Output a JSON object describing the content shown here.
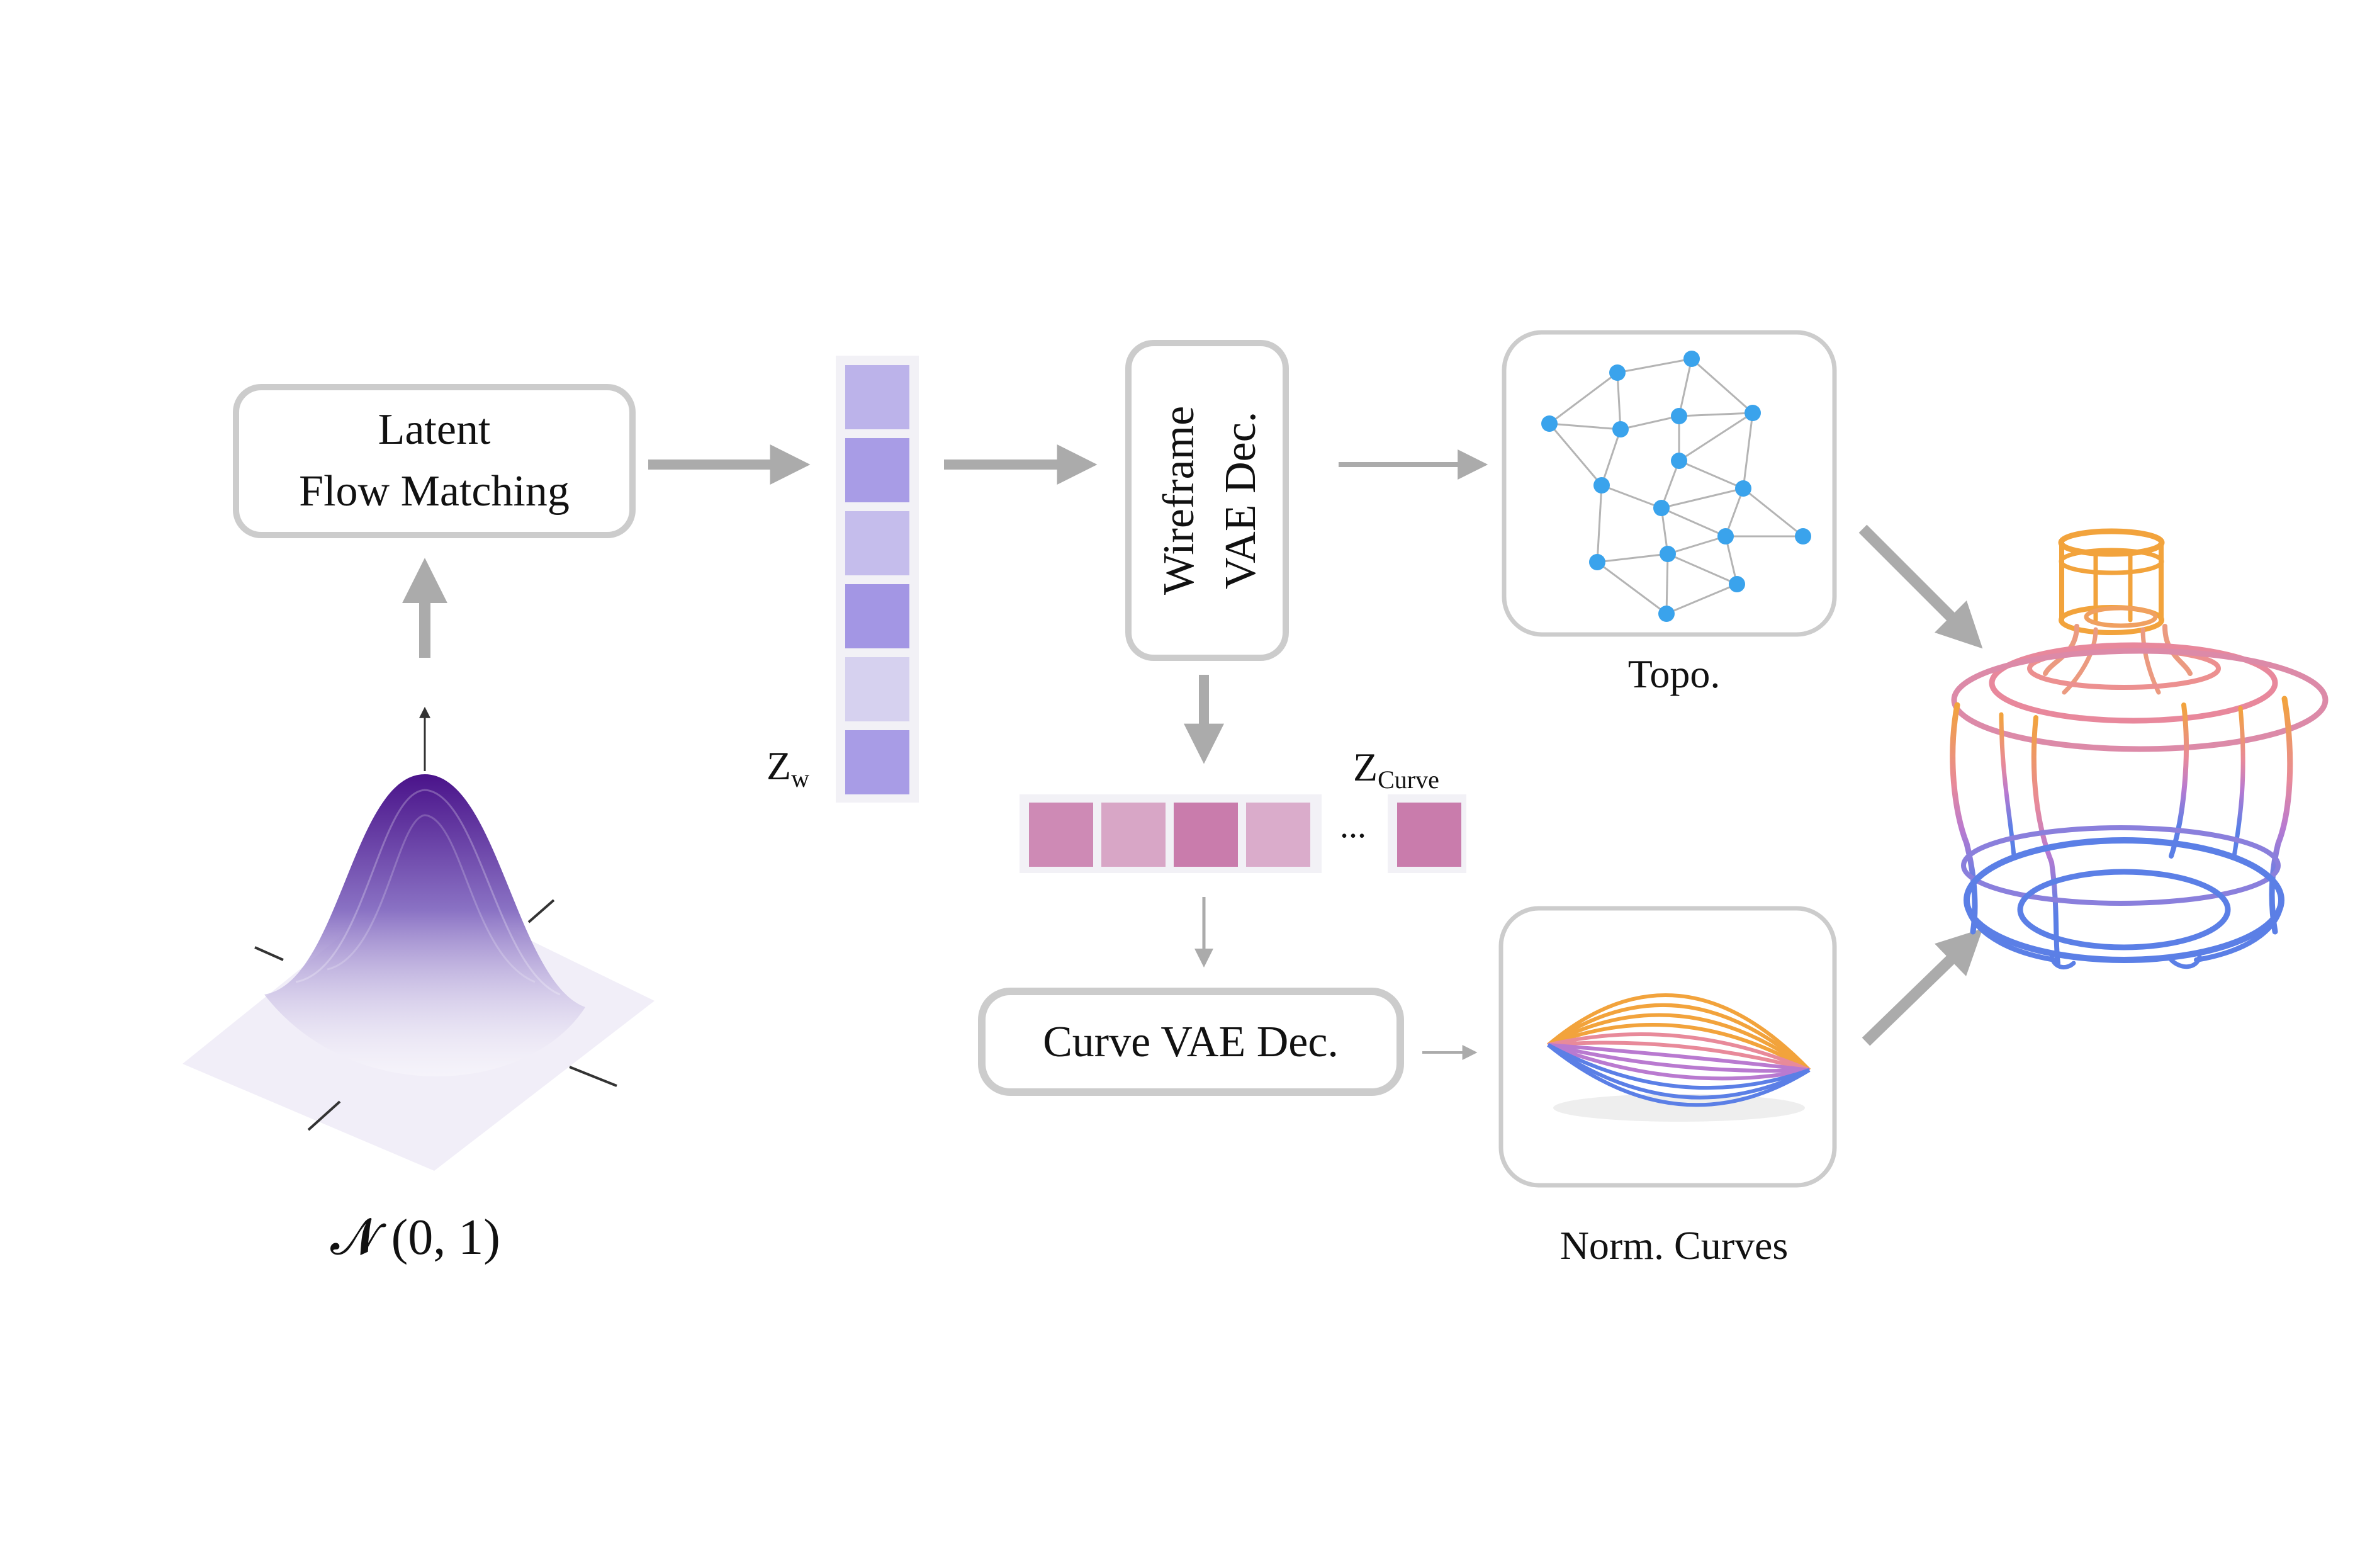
{
  "blocks": {
    "latent_flow": {
      "line1": "Latent",
      "line2": "Flow Matching"
    },
    "wireframe_dec": {
      "line1": "Wireframe",
      "line2": "VAE Dec."
    },
    "curve_dec": {
      "label": "Curve VAE Dec."
    }
  },
  "labels": {
    "gaussian": "𝓝 (0, 1)",
    "zw_main": "Z",
    "zw_sub": "w",
    "zcurve_main": "Z",
    "zcurve_sub": "Curve",
    "ellipsis": "...",
    "topo": "Topo.",
    "norm_curves": "Norm. Curves"
  },
  "latent_w": {
    "opacities": [
      0.55,
      0.75,
      0.45,
      0.8,
      0.28,
      0.75
    ]
  },
  "latent_curve": {
    "opacities": [
      0.75,
      0.55,
      0.85,
      0.5,
      0.85
    ]
  },
  "colors": {
    "arrow": "#ababab",
    "box_border": "#cccccc",
    "latent_w": "#8f7fe0",
    "latent_curve": "#c2679f",
    "node": "#3aa3ec",
    "edge": "#b4b4b4",
    "gaussian_top": "#4a138a",
    "wire_orange": "#f2a33c",
    "wire_pink": "#e88a9a",
    "wire_purple": "#b97ad0",
    "wire_blue": "#5b7fe6"
  }
}
